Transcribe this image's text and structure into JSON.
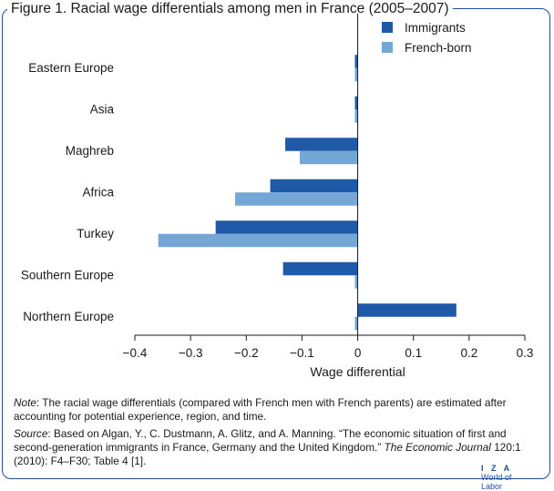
{
  "figure": {
    "title": "Figure 1. Racial wage differentials among men in France (2005–2007)"
  },
  "chart_data": {
    "type": "bar",
    "orientation": "horizontal",
    "categories": [
      "Eastern Europe",
      "Asia",
      "Maghreb",
      "Africa",
      "Turkey",
      "Southern Europe",
      "Northern Europe"
    ],
    "series": [
      {
        "name": "Immigrants",
        "color": "#1f5aa8",
        "values": [
          -0.005,
          -0.005,
          -0.13,
          -0.157,
          -0.255,
          -0.134,
          0.177
        ]
      },
      {
        "name": "French-born",
        "color": "#74a6d6",
        "values": [
          -0.005,
          -0.005,
          -0.104,
          -0.22,
          -0.358,
          -0.005,
          -0.005
        ]
      }
    ],
    "xlim": [
      -0.4,
      0.3
    ],
    "xticks": [
      -0.4,
      -0.3,
      -0.2,
      -0.1,
      0,
      0.1,
      0.2,
      0.3
    ],
    "xtick_labels": [
      "−0.4",
      "−0.3",
      "−0.2",
      "−0.1",
      "0",
      "0.1",
      "0.2",
      "0.3"
    ],
    "xlabel": "Wage differential",
    "legend_position": "top-right"
  },
  "note": {
    "label": "Note",
    "text": ": The racial wage differentials (compared with French men with French parents) are estimated after accounting for potential experience, region, and time."
  },
  "source": {
    "label": "Source",
    "text1": ": Based on Algan, Y., C. Dustmann, A. Glitz, and A. Manning. “The economic situation of first and second-generation immigrants in France, Germany and the United Kingdom.” ",
    "journal": "The Economic Journal",
    "text2": " 120:1 (2010): F4–F30; Table 4 [1]."
  },
  "logo": {
    "top": "I Z A",
    "bottom": "World of Labor"
  }
}
